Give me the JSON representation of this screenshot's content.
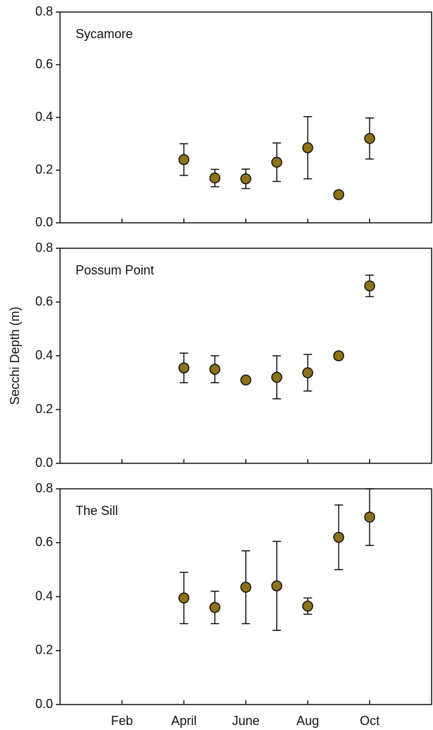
{
  "chart_data": [
    {
      "type": "scatter",
      "title": "Sycamore",
      "ylim": [
        0,
        0.8
      ],
      "yticks": [
        {
          "value": 0,
          "label": "0.0"
        },
        {
          "value": 0.2,
          "label": "0.2"
        },
        {
          "value": 0.4,
          "label": "0.4"
        },
        {
          "value": 0.6,
          "label": "0.6"
        },
        {
          "value": 0.8,
          "label": "0.8"
        }
      ],
      "series": [
        {
          "color": "#8c7318",
          "x": [
            4,
            5,
            6,
            7,
            8,
            9,
            10
          ],
          "values": [
            0.24,
            0.17,
            0.167,
            0.23,
            0.285,
            0.107,
            0.32
          ],
          "errors": [
            0.06,
            0.033,
            0.037,
            0.073,
            0.118,
            null,
            0.078
          ]
        }
      ]
    },
    {
      "type": "scatter",
      "title": "Possum Point",
      "y_label": "Secchi Depth (m)",
      "ylim": [
        0,
        0.8
      ],
      "yticks": [
        {
          "value": 0,
          "label": "0.0"
        },
        {
          "value": 0.2,
          "label": "0.2"
        },
        {
          "value": 0.4,
          "label": "0.4"
        },
        {
          "value": 0.6,
          "label": "0.6"
        },
        {
          "value": 0.8,
          "label": "0.8"
        }
      ],
      "series": [
        {
          "color": "#8c7318",
          "x": [
            4,
            5,
            6,
            7,
            8,
            9,
            10
          ],
          "values": [
            0.355,
            0.35,
            0.31,
            0.32,
            0.337,
            0.4,
            0.66
          ],
          "errors": [
            0.055,
            0.05,
            0.008,
            0.08,
            0.068,
            null,
            0.04
          ]
        }
      ]
    },
    {
      "type": "scatter",
      "title": "The Sill",
      "xlim": [
        0,
        12
      ],
      "xticks": [
        {
          "value": 2,
          "label": "Feb"
        },
        {
          "value": 4,
          "label": "April"
        },
        {
          "value": 6,
          "label": "June"
        },
        {
          "value": 8,
          "label": "Aug"
        },
        {
          "value": 10,
          "label": "Oct"
        }
      ],
      "ylim": [
        0,
        0.8
      ],
      "yticks": [
        {
          "value": 0,
          "label": "0.0"
        },
        {
          "value": 0.2,
          "label": "0.2"
        },
        {
          "value": 0.4,
          "label": "0.4"
        },
        {
          "value": 0.6,
          "label": "0.6"
        },
        {
          "value": 0.8,
          "label": "0.8"
        }
      ],
      "series": [
        {
          "color": "#8c7318",
          "x": [
            4,
            5,
            6,
            7,
            8,
            9,
            10
          ],
          "values": [
            0.395,
            0.36,
            0.435,
            0.44,
            0.365,
            0.62,
            0.695
          ],
          "errors": [
            0.095,
            0.06,
            0.135,
            0.165,
            0.03,
            0.12,
            0.105
          ]
        }
      ]
    }
  ]
}
